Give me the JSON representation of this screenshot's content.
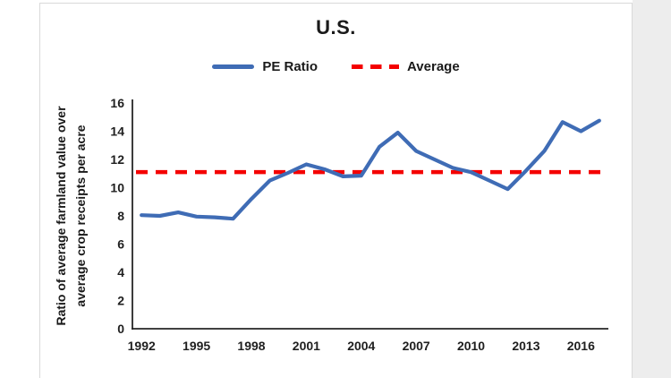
{
  "chart": {
    "title": "U.S.",
    "y_axis_label_line1": "Ratio of average farmland value over",
    "y_axis_label_line2": "average crop receipts per acre"
  },
  "colors": {
    "pe_ratio_blue": "#3F6CB5",
    "average_red": "#F40000",
    "axis": "#262626",
    "text": "#1A1A1A",
    "panel_border": "#D9D9D9",
    "gutter": "#EDEDED"
  },
  "chart_data": {
    "type": "line",
    "title": "U.S.",
    "xlabel": "",
    "ylabel": "Ratio of average farmland value over average crop receipts per acre",
    "x": [
      1992,
      1993,
      1994,
      1995,
      1996,
      1997,
      1998,
      1999,
      2000,
      2001,
      2002,
      2003,
      2004,
      2005,
      2006,
      2007,
      2008,
      2009,
      2010,
      2011,
      2012,
      2013,
      2014,
      2015,
      2016,
      2017
    ],
    "series": [
      {
        "name": "PE Ratio",
        "color": "#3F6CB5",
        "line_style": "solid",
        "values": [
          8.05,
          8.0,
          8.25,
          7.95,
          7.9,
          7.8,
          9.2,
          10.5,
          11.05,
          11.65,
          11.3,
          10.8,
          10.85,
          12.9,
          13.9,
          12.6,
          12.0,
          11.4,
          11.1,
          10.5,
          9.9,
          11.2,
          12.6,
          14.65,
          14.0,
          14.75
        ]
      },
      {
        "name": "Average",
        "color": "#F40000",
        "line_style": "dashed",
        "constant_value": 11.1
      }
    ],
    "ylim": [
      0,
      16
    ],
    "ytick_step": 2,
    "xtick_labels": [
      "1992",
      "1995",
      "1998",
      "2001",
      "2004",
      "2007",
      "2010",
      "2013",
      "2016"
    ],
    "grid": false,
    "legend_position": "top-center"
  }
}
